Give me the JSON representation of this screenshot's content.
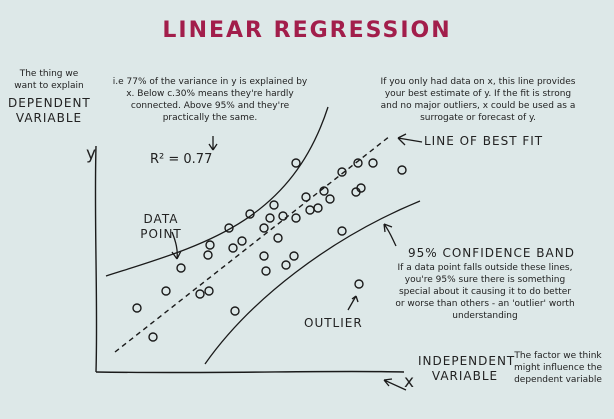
{
  "title": "LINEAR REGRESSION",
  "y_axis": {
    "note": "The thing we want to explain",
    "label": "DEPENDENT VARIABLE",
    "symbol": "y"
  },
  "x_axis": {
    "label": "INDEPENDENT VARIABLE",
    "symbol": "x",
    "note": "The factor we think might influence the dependent variable"
  },
  "r_squared": {
    "value": "R² = 0.77",
    "explanation": "i.e 77% of the variance in y is explained by x. Below c.30% means they're hardly connected. Above 95% and they're practically the same."
  },
  "line_of_best_fit": {
    "label": "LINE OF BEST FIT",
    "explanation": "If you only had data on x, this line provides your best estimate of y. If the fit is strong and no major outliers, x could be used as a surrogate or forecast of y."
  },
  "confidence_band": {
    "label": "95% CONFIDENCE BAND",
    "explanation": "If a data point falls outside these lines, you're 95% sure there is something special about it causing it to do better or worse than others - an 'outlier' worth understanding"
  },
  "data_point_label": "DATA POINT",
  "outlier_label": "OUTLIER",
  "colors": {
    "title": "#a21e4b",
    "ink": "#1a1a1a",
    "background": "#dde8e8"
  },
  "points": [
    [
      137,
      308
    ],
    [
      153,
      337
    ],
    [
      166,
      291
    ],
    [
      181,
      268
    ],
    [
      200,
      294
    ],
    [
      209,
      291
    ],
    [
      208,
      255
    ],
    [
      210,
      245
    ],
    [
      229,
      228
    ],
    [
      233,
      248
    ],
    [
      242,
      241
    ],
    [
      235,
      311
    ],
    [
      250,
      214
    ],
    [
      264,
      256
    ],
    [
      266,
      271
    ],
    [
      264,
      228
    ],
    [
      270,
      218
    ],
    [
      274,
      205
    ],
    [
      278,
      238
    ],
    [
      283,
      216
    ],
    [
      286,
      265
    ],
    [
      296,
      218
    ],
    [
      296,
      163
    ],
    [
      294,
      256
    ],
    [
      306,
      197
    ],
    [
      310,
      210
    ],
    [
      318,
      208
    ],
    [
      324,
      191
    ],
    [
      330,
      199
    ],
    [
      342,
      172
    ],
    [
      342,
      231
    ],
    [
      356,
      192
    ],
    [
      358,
      163
    ],
    [
      361,
      188
    ],
    [
      373,
      163
    ],
    [
      402,
      170
    ],
    [
      359,
      284
    ]
  ]
}
